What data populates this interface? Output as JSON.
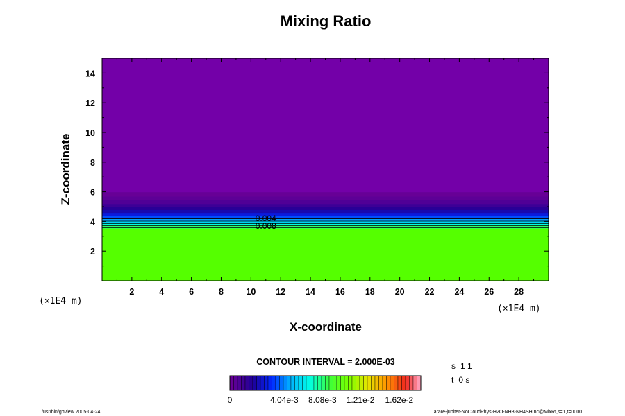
{
  "chart_data": {
    "type": "heatmap",
    "title": "Mixing Ratio",
    "xlabel": "X-coordinate",
    "ylabel": "Z-coordinate",
    "x_unit": "(×1E4 m)",
    "y_unit": "(×1E4 m)",
    "xlim": [
      0,
      30
    ],
    "ylim": [
      0,
      15
    ],
    "x_ticks": [
      2,
      4,
      6,
      8,
      10,
      12,
      14,
      16,
      18,
      20,
      22,
      24,
      26,
      28
    ],
    "y_ticks": [
      2,
      4,
      6,
      8,
      10,
      12,
      14
    ],
    "layers": [
      {
        "z_from": 0,
        "z_to": 3.55,
        "value": 0.0108
      },
      {
        "z_from": 3.55,
        "z_to": 3.75,
        "value": 0.01
      },
      {
        "z_from": 3.75,
        "z_to": 3.9,
        "value": 0.0085
      },
      {
        "z_from": 3.9,
        "z_to": 4.05,
        "value": 0.0073
      },
      {
        "z_from": 4.05,
        "z_to": 4.2,
        "value": 0.0062
      },
      {
        "z_from": 4.2,
        "z_to": 4.4,
        "value": 0.005
      },
      {
        "z_from": 4.4,
        "z_to": 4.6,
        "value": 0.0038
      },
      {
        "z_from": 4.6,
        "z_to": 4.8,
        "value": 0.0029
      },
      {
        "z_from": 4.8,
        "z_to": 5.0,
        "value": 0.0021
      },
      {
        "z_from": 5.0,
        "z_to": 5.2,
        "value": 0.0015
      },
      {
        "z_from": 5.2,
        "z_to": 5.45,
        "value": 0.0009
      },
      {
        "z_from": 5.45,
        "z_to": 5.7,
        "value": 0.0005
      },
      {
        "z_from": 5.7,
        "z_to": 6.0,
        "value": 0.0002
      },
      {
        "z_from": 6.0,
        "z_to": 15,
        "value": 0
      }
    ],
    "contour_lines": [
      3.58,
      3.72,
      3.86,
      4.02,
      4.18
    ],
    "contour_labels": [
      {
        "text": "0.004",
        "x": 11,
        "z": 4.2
      },
      {
        "text": "0.008",
        "x": 11,
        "z": 3.68
      }
    ],
    "colorbar": {
      "range": [
        0,
        0.0202
      ],
      "ticks": [
        {
          "value": 0,
          "label": "0"
        },
        {
          "value": 0.00404,
          "label": "4.04e-3"
        },
        {
          "value": 0.00808,
          "label": "8.08e-3"
        },
        {
          "value": 0.0121,
          "label": "1.21e-2"
        },
        {
          "value": 0.0162,
          "label": "1.62e-2"
        }
      ]
    },
    "contour_interval_text": "CONTOUR INTERVAL = 2.000E-03",
    "annotations": [
      "s=1 1",
      "t=0 s"
    ],
    "footer_left": "/usr/bin/gpview 2005-04-24",
    "footer_right": "arare-jupiter-NoCloudPhys-H2O-NH3-NH4SH.nc@MixRt,s=1,t=0000"
  }
}
